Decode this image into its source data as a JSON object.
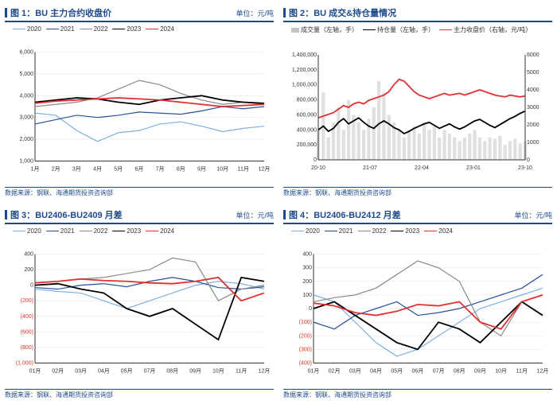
{
  "colors": {
    "s2020": "#7fb0e0",
    "s2021": "#29529c",
    "s2022": "#8a8a8a",
    "s2023": "#000000",
    "s2024": "#e03030",
    "volume": "#c4c4c4",
    "oi": "#000000",
    "price": "#e03030",
    "brand": "#1e4a8c",
    "neg": "#d02020"
  },
  "source_text": "数据来源：钢联、海通期货投资咨询部",
  "chart1": {
    "title_prefix": "图 1：",
    "title": "BU 主力合约收盘价",
    "unit": "单位：元/吨",
    "ylim": [
      1000,
      6000
    ],
    "ystep": 1000,
    "xlabels": [
      "1月",
      "2月",
      "3月",
      "4月",
      "5月",
      "6月",
      "7月",
      "8月",
      "9月",
      "10月",
      "11月",
      "12月"
    ],
    "legend": [
      "2020",
      "2021",
      "2022",
      "2023",
      "2024"
    ],
    "series": {
      "2020": [
        3200,
        3100,
        2400,
        1900,
        2300,
        2400,
        2700,
        2800,
        2600,
        2350,
        2500,
        2600
      ],
      "2021": [
        2700,
        2900,
        3100,
        3000,
        3100,
        3250,
        3200,
        3150,
        3300,
        3500,
        3400,
        3500
      ],
      "2022": [
        3500,
        3600,
        3700,
        3900,
        4300,
        4700,
        4500,
        4100,
        3800,
        3600,
        3700,
        3600
      ],
      "2023": [
        3700,
        3800,
        3900,
        3850,
        3700,
        3600,
        3800,
        3900,
        4000,
        3800,
        3700,
        3650
      ],
      "2024": [
        3650,
        3750,
        3800,
        3850,
        3900,
        3850,
        3800,
        3700,
        3600,
        3500,
        3550,
        3600
      ]
    }
  },
  "chart2": {
    "title_prefix": "图 2：",
    "title": "BU 成交&持仓量情况",
    "unit": "",
    "y1lim": [
      0,
      1400000
    ],
    "y1step": 200000,
    "y2lim": [
      0,
      6000
    ],
    "y2step": 1000,
    "xlabels": [
      "20-10",
      "21-07",
      "22-04",
      "23-01",
      "23-10"
    ],
    "legend": [
      {
        "label": "成交量（左轴，手）",
        "type": "box",
        "color": "volume"
      },
      {
        "label": "持仓量（左轴，手）",
        "type": "line",
        "color": "oi"
      },
      {
        "label": "主力收盘价（右轴，元/吨）",
        "type": "line",
        "color": "price"
      }
    ],
    "volume": [
      400000,
      900000,
      300000,
      500000,
      700000,
      400000,
      800000,
      600000,
      500000,
      400000,
      550000,
      700000,
      1050000,
      900000,
      600000,
      500000,
      400000,
      300000,
      400000,
      450000,
      350000,
      500000,
      400000,
      450000,
      300000,
      400000,
      350000,
      300000,
      250000,
      300000,
      350000,
      400000,
      300000,
      250000,
      300000,
      280000,
      320000,
      200000,
      250000,
      280000,
      220000,
      250000
    ],
    "oi": [
      400000,
      450000,
      380000,
      420000,
      500000,
      550000,
      480000,
      520000,
      560000,
      500000,
      450000,
      420000,
      480000,
      520000,
      480000,
      430000,
      400000,
      350000,
      380000,
      420000,
      450000,
      480000,
      500000,
      460000,
      420000,
      450000,
      480000,
      440000,
      410000,
      440000,
      480000,
      520000,
      540000,
      500000,
      460000,
      430000,
      470000,
      510000,
      550000,
      580000,
      620000,
      650000
    ],
    "price": [
      2400,
      2500,
      2600,
      2700,
      2900,
      3100,
      3000,
      3200,
      3300,
      3200,
      3400,
      3500,
      3600,
      3700,
      3900,
      4300,
      4600,
      4500,
      4200,
      3900,
      3700,
      3600,
      3500,
      3600,
      3700,
      3800,
      3700,
      3750,
      3800,
      3700,
      3800,
      3900,
      4000,
      3900,
      3800,
      3700,
      3650,
      3600,
      3700,
      3650,
      3600,
      3650
    ]
  },
  "chart3": {
    "title_prefix": "图 3：",
    "title": "BU2406-BU2409 月差",
    "unit": "单位：元/吨",
    "ylim": [
      -1000,
      400
    ],
    "ystep": 200,
    "xlabels": [
      "01月",
      "02月",
      "03月",
      "04月",
      "05月",
      "07月",
      "08月",
      "09月",
      "10月",
      "11月",
      "12月"
    ],
    "legend": [
      "2020",
      "2021",
      "2022",
      "2023",
      "2024"
    ],
    "series": {
      "2020": [
        -50,
        -80,
        -100,
        -200,
        -300,
        -200,
        -100,
        0,
        50,
        20,
        -50
      ],
      "2021": [
        -30,
        -50,
        0,
        20,
        -20,
        50,
        100,
        50,
        -30,
        -50,
        -20
      ],
      "2022": [
        30,
        50,
        80,
        100,
        150,
        200,
        350,
        300,
        -200,
        -50,
        0
      ],
      "2023": [
        0,
        20,
        -50,
        -100,
        -300,
        -400,
        -300,
        -500,
        -700,
        100,
        50
      ],
      "2024": [
        30,
        50,
        80,
        60,
        50,
        30,
        20,
        50,
        100,
        -200,
        -100
      ]
    }
  },
  "chart4": {
    "title_prefix": "图 4：",
    "title": "BU2406-BU2412 月差",
    "unit": "单位：元/吨",
    "ylim": [
      -400,
      400
    ],
    "ystep": 100,
    "xlabels": [
      "01月",
      "02月",
      "03月",
      "04月",
      "05月",
      "06月",
      "07月",
      "08月",
      "09月",
      "10月",
      "11月",
      "12月"
    ],
    "legend": [
      "2020",
      "2021",
      "2022",
      "2023",
      "2024"
    ],
    "series": {
      "2020": [
        100,
        50,
        -100,
        -250,
        -350,
        -300,
        -200,
        -100,
        0,
        50,
        100,
        150
      ],
      "2021": [
        -100,
        -150,
        -50,
        0,
        50,
        -50,
        -30,
        0,
        50,
        100,
        150,
        250
      ],
      "2022": [
        50,
        80,
        100,
        150,
        250,
        350,
        300,
        200,
        -100,
        -200,
        50,
        100
      ],
      "2023": [
        0,
        50,
        -50,
        -150,
        -250,
        -300,
        -100,
        -150,
        -250,
        -100,
        50,
        -50
      ],
      "2024": [
        40,
        20,
        -30,
        -50,
        -20,
        30,
        20,
        50,
        -100,
        -150,
        50,
        100
      ]
    }
  }
}
